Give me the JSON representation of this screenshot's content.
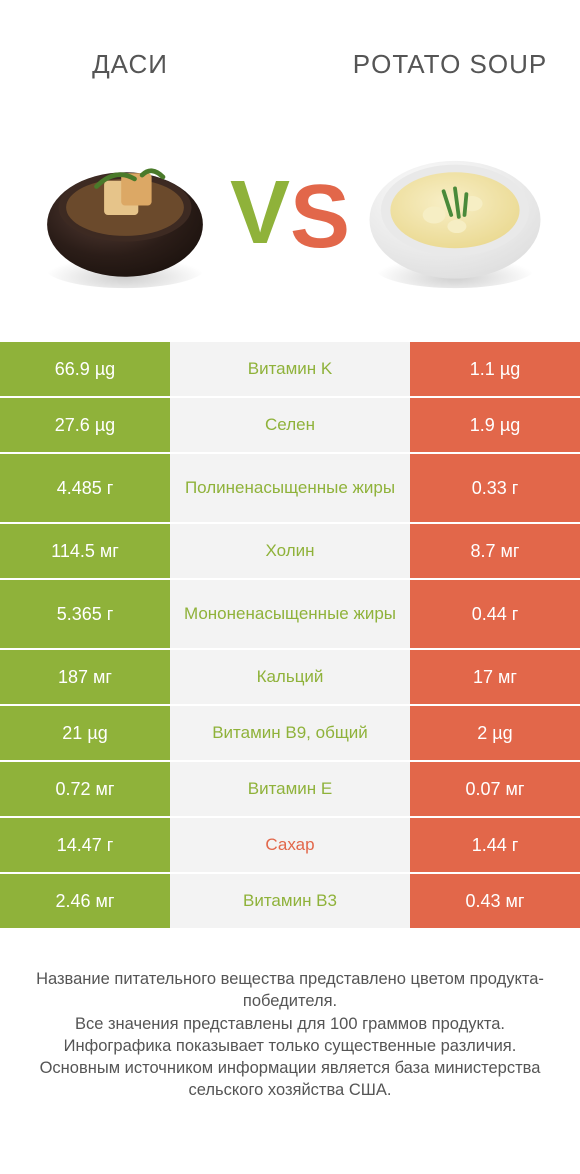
{
  "colors": {
    "green": "#8fb23a",
    "orange": "#e2674a",
    "mid_bg": "#f3f3f3",
    "mid_text_green": "#8fb23a",
    "mid_text_orange": "#e2674a",
    "vs_v": "#8fb23a",
    "vs_s": "#e2674a"
  },
  "header": {
    "left": "ДАСИ",
    "right": "POTATO SOUP"
  },
  "vs": {
    "v": "V",
    "s": "S"
  },
  "rows": [
    {
      "left": "66.9 µg",
      "mid": "Витамин K",
      "right": "1.1 µg",
      "winner": "left",
      "tall": false
    },
    {
      "left": "27.6 µg",
      "mid": "Селен",
      "right": "1.9 µg",
      "winner": "left",
      "tall": false
    },
    {
      "left": "4.485 г",
      "mid": "Полиненасыщенные жиры",
      "right": "0.33 г",
      "winner": "left",
      "tall": true
    },
    {
      "left": "114.5 мг",
      "mid": "Холин",
      "right": "8.7 мг",
      "winner": "left",
      "tall": false
    },
    {
      "left": "5.365 г",
      "mid": "Мононенасыщенные жиры",
      "right": "0.44 г",
      "winner": "left",
      "tall": true
    },
    {
      "left": "187 мг",
      "mid": "Кальций",
      "right": "17 мг",
      "winner": "left",
      "tall": false
    },
    {
      "left": "21 µg",
      "mid": "Витамин B9, общий",
      "right": "2 µg",
      "winner": "left",
      "tall": false
    },
    {
      "left": "0.72 мг",
      "mid": "Витамин E",
      "right": "0.07 мг",
      "winner": "left",
      "tall": false
    },
    {
      "left": "14.47 г",
      "mid": "Сахар",
      "right": "1.44 г",
      "winner": "right",
      "tall": false
    },
    {
      "left": "2.46 мг",
      "mid": "Витамин B3",
      "right": "0.43 мг",
      "winner": "left",
      "tall": false
    }
  ],
  "footer": {
    "line1": "Название питательного вещества представлено цветом продукта-победителя.",
    "line2": "Все значения представлены для 100 граммов продукта.",
    "line3": "Инфографика показывает только существенные различия.",
    "line4": "Основным источником информации является база министерства сельского хозяйства США."
  }
}
